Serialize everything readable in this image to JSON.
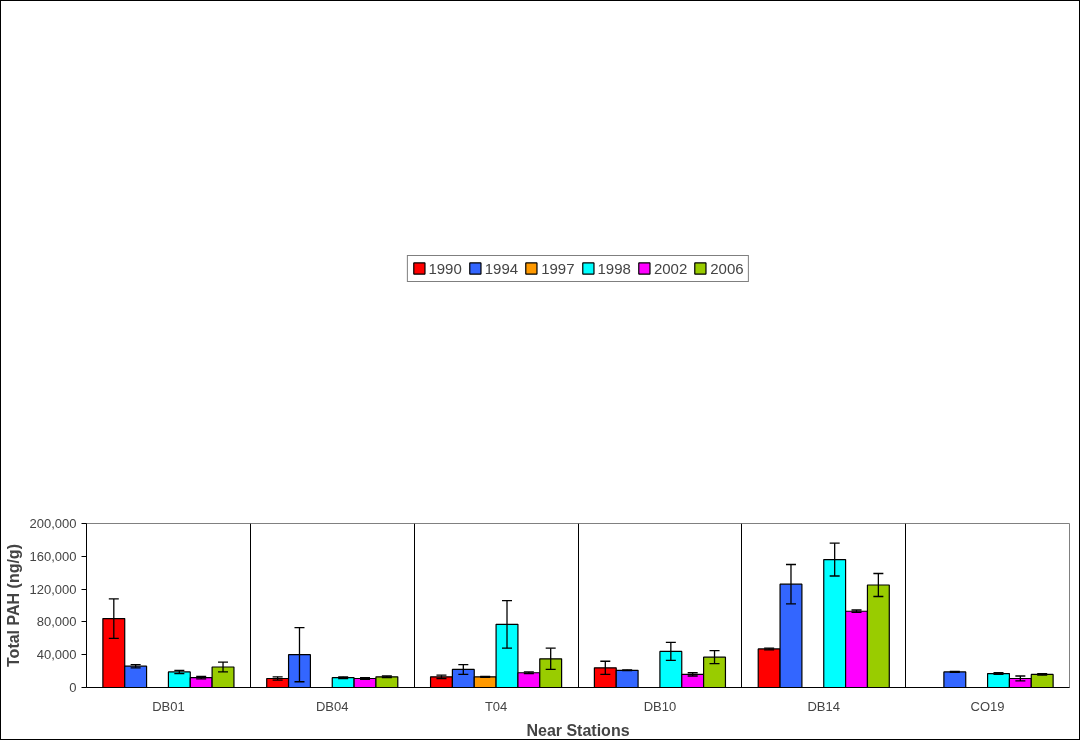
{
  "chart_data": {
    "type": "bar",
    "xlabel": "Near Stations",
    "ylabel": "Total PAH (ng/g)",
    "categories": [
      "DB01",
      "DB04",
      "T04",
      "DB10",
      "DB14",
      "CO19"
    ],
    "series": [
      {
        "name": "1990",
        "color": "#ff0000",
        "values": [
          84000,
          11000,
          13000,
          24000,
          47000,
          null
        ],
        "errors": [
          24000,
          2000,
          2000,
          8000,
          1000,
          null
        ]
      },
      {
        "name": "1994",
        "color": "#3366ff",
        "values": [
          26000,
          40000,
          22000,
          21000,
          126000,
          19000
        ],
        "errors": [
          2000,
          33000,
          6000,
          500,
          24000,
          500
        ]
      },
      {
        "name": "1997",
        "color": "#ff9900",
        "values": [
          null,
          null,
          13000,
          null,
          null,
          null
        ],
        "errors": [
          null,
          null,
          500,
          null,
          null,
          null
        ]
      },
      {
        "name": "1998",
        "color": "#00ffff",
        "values": [
          19000,
          12000,
          77000,
          44000,
          156000,
          17000
        ],
        "errors": [
          2000,
          1000,
          29000,
          11000,
          20000,
          1000
        ]
      },
      {
        "name": "2002",
        "color": "#ff00ff",
        "values": [
          12000,
          11000,
          18000,
          16000,
          93000,
          11000
        ],
        "errors": [
          1500,
          1000,
          1000,
          2000,
          1500,
          3000
        ]
      },
      {
        "name": "2006",
        "color": "#99cc00",
        "values": [
          25000,
          13000,
          35000,
          37000,
          125000,
          16000
        ],
        "errors": [
          6000,
          1000,
          13000,
          8000,
          14000,
          1000
        ]
      }
    ],
    "ylim": [
      0,
      200000
    ],
    "yticks": [
      {
        "value": 0,
        "label": "0"
      },
      {
        "value": 40000,
        "label": "40,000"
      },
      {
        "value": 80000,
        "label": "80,000"
      },
      {
        "value": 120000,
        "label": "120,000"
      },
      {
        "value": 160000,
        "label": "160,000"
      },
      {
        "value": 200000,
        "label": "200,000"
      }
    ],
    "grid": "x",
    "legend": "top"
  }
}
